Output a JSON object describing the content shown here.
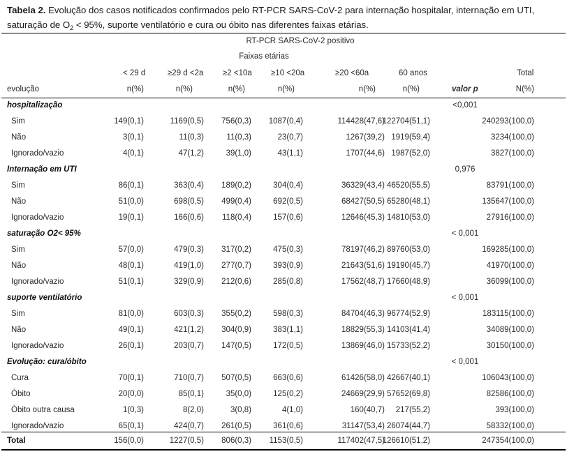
{
  "caption": {
    "label": "Tabela 2.",
    "text_a": " Evolução dos casos notificados confirmados pelo RT-PCR SARS-CoV-2 para internação hospitalar, internação em UTI, saturação de O",
    "sub": "2",
    "text_b": " < 95%, suporte ventilatório e cura ou óbito nas diferentes faixas etárias."
  },
  "header": {
    "super": "RT-PCR SARS-CoV-2 positivo",
    "faixas": "Faixas etárias",
    "ages": [
      "< 29 d",
      "≥29 d <2a",
      "≥2 <10a",
      "≥10 <20a",
      "≥20 <60a",
      "60 anos",
      "Total"
    ],
    "evolucao": "evolução",
    "units": [
      "n(%)",
      "n(%)",
      "n(%)",
      "n(%)",
      "n(%)",
      "n(%)"
    ],
    "valorp": "valor p",
    "total_unit": "N(%)"
  },
  "groups": [
    {
      "title": "hospitalização",
      "p": "<0,001",
      "rows": [
        {
          "label": "Sim",
          "v": [
            "149(0,1)",
            "1169(0,5)",
            "756(0,3)",
            "1087(0,4)",
            "114428(47,6)",
            "122704(51,1)",
            "240293(100,0)"
          ]
        },
        {
          "label": "Não",
          "v": [
            "3(0,1)",
            "11(0,3)",
            "11(0,3)",
            "23(0,7)",
            "1267(39,2)",
            "1919(59,4)",
            "3234(100,0)"
          ]
        },
        {
          "label": "Ignorado/vazio",
          "v": [
            "4(0,1)",
            "47(1,2)",
            "39(1,0)",
            "43(1,1)",
            "1707(44,6)",
            "1987(52,0)",
            "3827(100,0)"
          ]
        }
      ]
    },
    {
      "title": "Internação em UTI",
      "p": "0,976",
      "rows": [
        {
          "label": "Sim",
          "v": [
            "86(0,1)",
            "363(0,4)",
            "189(0,2)",
            "304(0,4)",
            "36329(43,4)",
            "46520(55,5)",
            "83791(100,0)"
          ]
        },
        {
          "label": "Não",
          "v": [
            "51(0,0)",
            "698(0,5)",
            "499(0,4)",
            "692(0,5)",
            "68427(50,5)",
            "65280(48,1)",
            "135647(100,0)"
          ]
        },
        {
          "label": "Ignorado/vazio",
          "v": [
            "19(0,1)",
            "166(0,6)",
            "118(0,4)",
            "157(0,6)",
            "12646(45,3)",
            "14810(53,0)",
            "27916(100,0)"
          ]
        }
      ]
    },
    {
      "title": "saturação O2< 95%",
      "p": "< 0,001",
      "rows": [
        {
          "label": "Sim",
          "v": [
            "57(0,0)",
            "479(0,3)",
            "317(0,2)",
            "475(0,3)",
            "78197(46,2)",
            "89760(53,0)",
            "169285(100,0)"
          ]
        },
        {
          "label": "Não",
          "v": [
            "48(0,1)",
            "419(1,0)",
            "277(0,7)",
            "393(0,9)",
            "21643(51,6)",
            "19190(45,7)",
            "41970(100,0)"
          ]
        },
        {
          "label": "Ignorado/vazio",
          "v": [
            "51(0,1)",
            "329(0,9)",
            "212(0,6)",
            "285(0,8)",
            "17562(48,7)",
            "17660(48,9)",
            "36099(100,0)"
          ]
        }
      ]
    },
    {
      "title": "suporte ventilatório",
      "p": "< 0,001",
      "rows": [
        {
          "label": "Sim",
          "v": [
            "81(0,0)",
            "603(0,3)",
            "355(0,2)",
            "598(0,3)",
            "84704(46,3)",
            "96774(52,9)",
            "183115(100,0)"
          ]
        },
        {
          "label": "Não",
          "v": [
            "49(0,1)",
            "421(1,2)",
            "304(0,9)",
            "383(1,1)",
            "18829(55,3)",
            "14103(41,4)",
            "34089(100,0)"
          ]
        },
        {
          "label": "Ignorado/vazio",
          "v": [
            "26(0,1)",
            "203(0,7)",
            "147(0,5)",
            "172(0,5)",
            "13869(46,0)",
            "15733(52,2)",
            "30150(100,0)"
          ]
        }
      ]
    },
    {
      "title": "Evolução: cura/óbito",
      "p": "< 0,001",
      "rows": [
        {
          "label": "Cura",
          "v": [
            "70(0,1)",
            "710(0,7)",
            "507(0,5)",
            "663(0,6)",
            "61426(58,0)",
            "42667(40,1)",
            "106043(100,0)"
          ]
        },
        {
          "label": "Óbito",
          "v": [
            "20(0,0)",
            "85(0,1)",
            "35(0,0)",
            "125(0,2)",
            "24669(29,9)",
            "57652(69,8)",
            "82586(100,0)"
          ]
        },
        {
          "label": "Óbito outra causa",
          "v": [
            "1(0,3)",
            "8(2,0)",
            "3(0,8)",
            "4(1,0)",
            "160(40,7)",
            "217(55,2)",
            "393(100,0)"
          ]
        },
        {
          "label": "Ignorado/vazio",
          "v": [
            "65(0,1)",
            "424(0,7)",
            "261(0,5)",
            "361(0,6)",
            "31147(53,4)",
            "26074(44,7)",
            "58332(100,0)"
          ]
        }
      ]
    }
  ],
  "total": {
    "label": "Total",
    "v": [
      "156(0,0)",
      "1227(0,5)",
      "806(0,3)",
      "1153(0,5)",
      "117402(47,5)",
      "126610(51,2)",
      "247354(100,0)"
    ]
  }
}
